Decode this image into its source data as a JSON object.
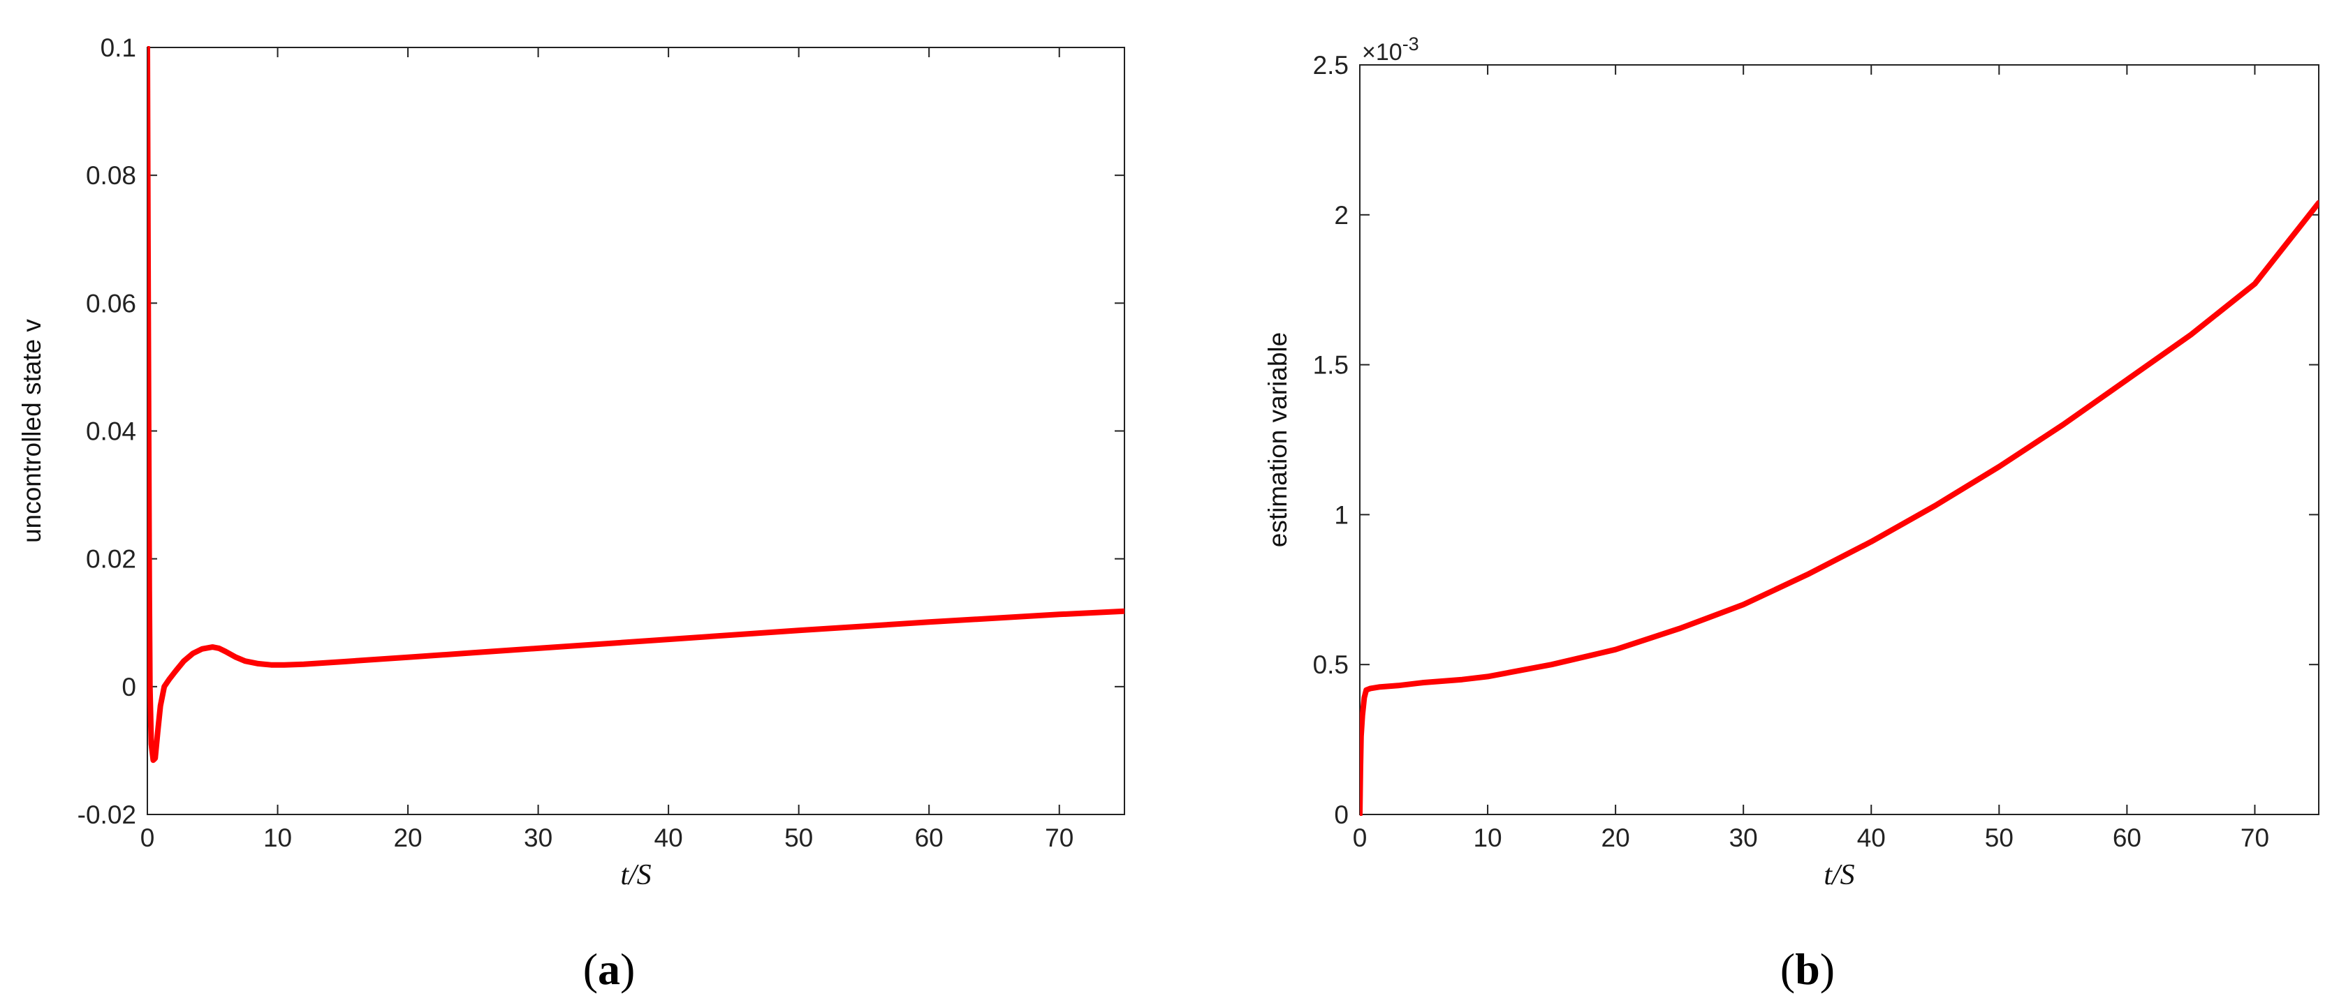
{
  "chart_data": [
    {
      "type": "line",
      "panel": "a",
      "title": "",
      "xlabel": "t/S",
      "ylabel": "uncontrolled state v",
      "xlim": [
        0,
        75
      ],
      "ylim": [
        -0.02,
        0.1
      ],
      "xticks": [
        "0",
        "10",
        "20",
        "30",
        "40",
        "50",
        "60",
        "70"
      ],
      "yticks": [
        "-0.02",
        "0",
        "0.02",
        "0.04",
        "0.06",
        "0.08",
        "0.1"
      ],
      "grid": false,
      "line_color": "#ff0000",
      "series": [
        {
          "x": [
            0,
            0.05,
            0.1,
            0.15,
            0.2,
            0.3,
            0.45,
            0.6,
            0.8,
            1.0,
            1.3,
            1.7,
            2.2,
            2.8,
            3.5,
            4.2,
            5.0,
            5.5,
            6.0,
            6.8,
            7.5,
            8.5,
            9.5,
            10.5,
            12,
            15,
            20,
            25,
            30,
            40,
            50,
            60,
            70,
            75
          ],
          "y": [
            0.1,
            0.07,
            0.04,
            0.015,
            0.0,
            -0.009,
            -0.0115,
            -0.0112,
            -0.007,
            -0.003,
            0.0,
            0.0012,
            0.0025,
            0.004,
            0.0052,
            0.0059,
            0.0062,
            0.006,
            0.0055,
            0.0046,
            0.004,
            0.0036,
            0.0034,
            0.0034,
            0.0035,
            0.0039,
            0.0046,
            0.0053,
            0.006,
            0.0074,
            0.0088,
            0.0101,
            0.0113,
            0.0118
          ]
        }
      ]
    },
    {
      "type": "line",
      "panel": "b",
      "title": "",
      "xlabel": "t/S",
      "ylabel": "estimation variable",
      "y_multiplier": "×10-3",
      "xlim": [
        0,
        75
      ],
      "ylim": [
        0,
        2.5
      ],
      "xticks": [
        "0",
        "10",
        "20",
        "30",
        "40",
        "50",
        "60",
        "70"
      ],
      "yticks": [
        "0",
        "0.5",
        "1",
        "1.5",
        "2",
        "2.5"
      ],
      "grid": false,
      "line_color": "#ff0000",
      "series": [
        {
          "x": [
            0,
            0.05,
            0.1,
            0.2,
            0.35,
            0.5,
            0.8,
            1.5,
            3,
            5,
            8,
            10,
            15,
            20,
            25,
            30,
            35,
            40,
            45,
            50,
            55,
            60,
            65,
            70,
            75
          ],
          "y": [
            0.0,
            0.15,
            0.26,
            0.33,
            0.39,
            0.415,
            0.42,
            0.425,
            0.43,
            0.44,
            0.45,
            0.46,
            0.5,
            0.55,
            0.62,
            0.7,
            0.8,
            0.91,
            1.03,
            1.16,
            1.3,
            1.45,
            1.6,
            1.77,
            2.04
          ]
        }
      ]
    }
  ],
  "panel_labels": {
    "a": {
      "open": "(",
      "letter": "a",
      "close": ")"
    },
    "b": {
      "open": "(",
      "letter": "b",
      "close": ")"
    }
  },
  "exponent": {
    "base": "×10",
    "power": "-3"
  }
}
